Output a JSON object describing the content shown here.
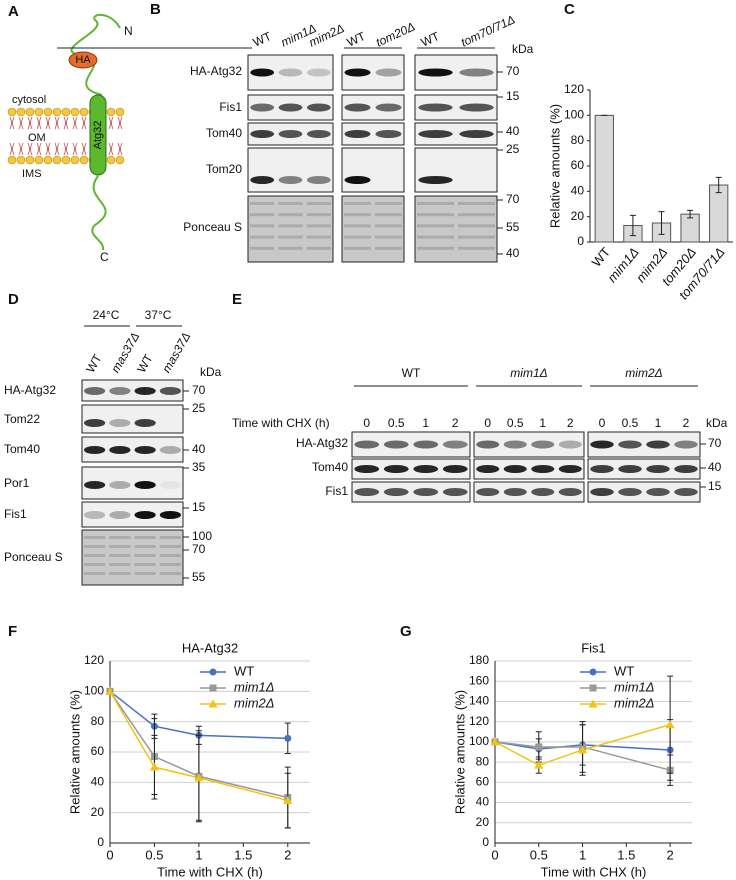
{
  "panel_labels": [
    "A",
    "B",
    "C",
    "D",
    "E",
    "F",
    "G"
  ],
  "diagram": {
    "n_terminus": "N",
    "tag": "HA",
    "cytosol": "cytosol",
    "om": "OM",
    "ims": "IMS",
    "protein": "Atg32",
    "c_terminus": "C"
  },
  "blot_b": {
    "lane_groups": [
      [
        "WT",
        "mim1Δ",
        "mim2Δ"
      ],
      [
        "WT",
        "tom20Δ"
      ],
      [
        "WT",
        "tom70/71Δ"
      ]
    ],
    "unit": "kDa",
    "rows": [
      "HA-Atg32",
      "Fis1",
      "Tom40",
      "Tom20",
      "Ponceau S"
    ],
    "markers": [
      70,
      15,
      40,
      25,
      70,
      55,
      40
    ]
  },
  "blot_d": {
    "temperatures": [
      "24°C",
      "37°C"
    ],
    "lanes": [
      "WT",
      "mas37Δ",
      "WT",
      "mas37Δ"
    ],
    "unit": "kDa",
    "rows": [
      "HA-Atg32",
      "Tom22",
      "Tom40",
      "Por1",
      "Fis1",
      "Ponceau S"
    ],
    "markers": [
      70,
      25,
      40,
      35,
      15,
      100,
      70,
      55
    ]
  },
  "blot_e": {
    "groups": [
      "WT",
      "mim1Δ",
      "mim2Δ"
    ],
    "time_label": "Time with CHX (h)",
    "times": [
      "0",
      "0.5",
      "1",
      "2"
    ],
    "unit": "kDa",
    "rows": [
      "HA-Atg32",
      "Tom40",
      "Fis1"
    ],
    "markers": [
      70,
      40,
      15
    ]
  },
  "chart_data": [
    {
      "type": "bar",
      "ylabel": "Relative amounts (%)",
      "categories": [
        "WT",
        "mim1Δ",
        "mim2Δ",
        "tom20Δ",
        "tom70/71Δ"
      ],
      "values": [
        100,
        13,
        15,
        22,
        45
      ],
      "errors": [
        0,
        8,
        9,
        3,
        6
      ],
      "color": "#d9d9d9",
      "ylim": [
        0,
        120
      ],
      "yticks": [
        0,
        20,
        40,
        60,
        80,
        100,
        120
      ]
    },
    {
      "type": "line",
      "title": "HA-Atg32",
      "xlabel": "Time with CHX (h)",
      "ylabel": "Relative amounts (%)",
      "x": [
        0,
        0.5,
        1,
        2
      ],
      "xlim": [
        0,
        2.25
      ],
      "xticks": [
        0,
        0.5,
        1,
        1.5,
        2
      ],
      "ylim": [
        0,
        120
      ],
      "yticks": [
        0,
        20,
        40,
        60,
        80,
        100,
        120
      ],
      "grid": true,
      "series": [
        {
          "name": "WT",
          "color": "#4472c4",
          "marker": "circle",
          "values": [
            100,
            77,
            71,
            69
          ],
          "errors": [
            0,
            8,
            6,
            10
          ]
        },
        {
          "name": "mim1Δ",
          "color": "#999999",
          "marker": "square",
          "values": [
            100,
            57,
            44,
            30
          ],
          "errors": [
            0,
            25,
            30,
            20
          ]
        },
        {
          "name": "mim2Δ",
          "color": "#f2c314",
          "marker": "triangle",
          "values": [
            100,
            50,
            43,
            28
          ],
          "errors": [
            0,
            21,
            28,
            18
          ]
        }
      ]
    },
    {
      "type": "line",
      "title": "Fis1",
      "xlabel": "Time with CHX (h)",
      "ylabel": "Relative amounts (%)",
      "x": [
        0,
        0.5,
        1,
        2
      ],
      "xlim": [
        0,
        2.25
      ],
      "xticks": [
        0,
        0.5,
        1,
        1.5,
        2
      ],
      "ylim": [
        0,
        180
      ],
      "yticks": [
        0,
        20,
        40,
        60,
        80,
        100,
        120,
        140,
        160,
        180
      ],
      "grid": true,
      "series": [
        {
          "name": "WT",
          "color": "#4472c4",
          "marker": "circle",
          "values": [
            100,
            93,
            97,
            92
          ],
          "errors": [
            0,
            10,
            20,
            30
          ]
        },
        {
          "name": "mim1Δ",
          "color": "#999999",
          "marker": "square",
          "values": [
            100,
            95,
            95,
            72
          ],
          "errors": [
            0,
            15,
            25,
            15
          ]
        },
        {
          "name": "mim2Δ",
          "color": "#f2c314",
          "marker": "triangle",
          "values": [
            100,
            77,
            92,
            117
          ],
          "errors": [
            0,
            8,
            25,
            48
          ]
        }
      ]
    }
  ]
}
